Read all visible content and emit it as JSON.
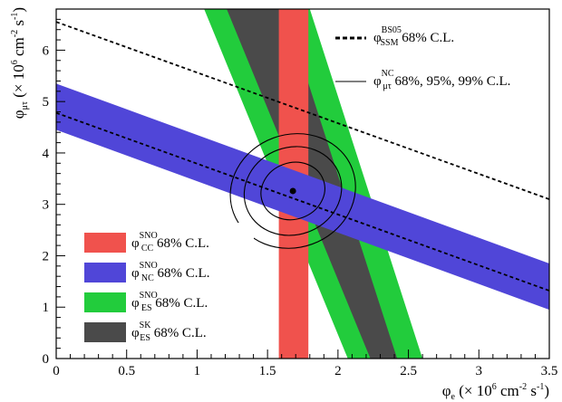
{
  "chart_data": {
    "type": "scatter",
    "title": "",
    "x_axis": {
      "label_main": "φ",
      "label_sub": "e",
      "label_rest": " (× 10",
      "label_sup": "6",
      "label_unit": " cm",
      "label_unit_sup": "-2",
      "label_unit2": " s",
      "label_unit2_sup": "-1",
      "label_close": ")",
      "range": [
        0,
        3.5
      ],
      "ticks": [
        0,
        0.5,
        1,
        1.5,
        2,
        2.5,
        3,
        3.5
      ],
      "tick_labels": [
        "0",
        "0.5",
        "1",
        "1.5",
        "2",
        "2.5",
        "3",
        "3.5"
      ]
    },
    "y_axis": {
      "label_main": "φ",
      "label_sub": "μτ",
      "label_rest": " (× 10",
      "label_sup": "6",
      "label_unit": " cm",
      "label_unit_sup": "-2",
      "label_unit2": " s",
      "label_unit2_sup": "-1",
      "label_close": ")",
      "range": [
        0,
        6.8
      ],
      "ticks": [
        0,
        1,
        2,
        3,
        4,
        5,
        6
      ],
      "tick_labels": [
        "0",
        "1",
        "2",
        "3",
        "4",
        "5",
        "6"
      ]
    },
    "best_fit_point": {
      "x": 1.68,
      "y": 3.26
    },
    "bands": [
      {
        "key": "cc_sno",
        "shape": "vertical",
        "x_min": 1.58,
        "x_max": 1.79,
        "color": "#f0524d"
      },
      {
        "key": "nc_sno",
        "shape": "sloped",
        "x_ref": 0,
        "y_ref_upper": 5.35,
        "y_ref_lower": 4.45,
        "slope": -1,
        "color": "#5046d8"
      },
      {
        "key": "es_sno",
        "shape": "sloped",
        "x_at_top": [
          1.05,
          1.8
        ],
        "x_at_bottom": [
          2.07,
          2.6
        ],
        "color": "#22cc3c"
      },
      {
        "key": "es_sk",
        "shape": "sloped",
        "x_at_top": [
          1.21,
          1.62
        ],
        "x_at_bottom": [
          2.23,
          2.42
        ],
        "color": "#4a4a4a"
      }
    ],
    "lines": [
      {
        "key": "ssm",
        "style": "dashed",
        "points": [
          [
            0,
            6.55
          ],
          [
            3.5,
            3.1
          ]
        ]
      },
      {
        "key": "nc_center",
        "style": "dashed",
        "points": [
          [
            0,
            4.78
          ],
          [
            3.5,
            1.32
          ]
        ]
      }
    ],
    "contours": {
      "center": {
        "x": 1.68,
        "y": 3.26
      },
      "levels": [
        "68%",
        "95%",
        "99%"
      ],
      "semi_axes": [
        [
          0.23,
          0.55
        ],
        [
          0.35,
          0.85
        ],
        [
          0.45,
          1.1
        ]
      ],
      "tilt_deg": -20
    },
    "legend": {
      "placement": "top-right and bottom-left",
      "top_right": [
        {
          "key": "ssm",
          "symbol": "φ",
          "sup": "BS05",
          "sub": "SSM",
          "text": " 68% C.L.",
          "style": "dashed"
        },
        {
          "key": "nc_contour",
          "symbol": "φ",
          "sup": "NC",
          "sub": "μτ",
          "text": " 68%, 95%, 99% C.L.",
          "style": "solid"
        }
      ],
      "bottom_left": [
        {
          "key": "cc_sno",
          "symbol": "φ",
          "sup": "SNO",
          "sub": "CC",
          "text": " 68% C.L.",
          "color": "#f0524d"
        },
        {
          "key": "nc_sno",
          "symbol": "φ",
          "sup": "SNO",
          "sub": "NC",
          "text": " 68% C.L.",
          "color": "#5046d8"
        },
        {
          "key": "es_sno",
          "symbol": "φ",
          "sup": "SNO",
          "sub": "ES",
          "text": " 68% C.L.",
          "color": "#22cc3c"
        },
        {
          "key": "es_sk",
          "symbol": "φ",
          "sup": "SK",
          "sub": "ES",
          "text": " 68% C.L.",
          "color": "#4a4a4a"
        }
      ]
    },
    "grid": false
  }
}
